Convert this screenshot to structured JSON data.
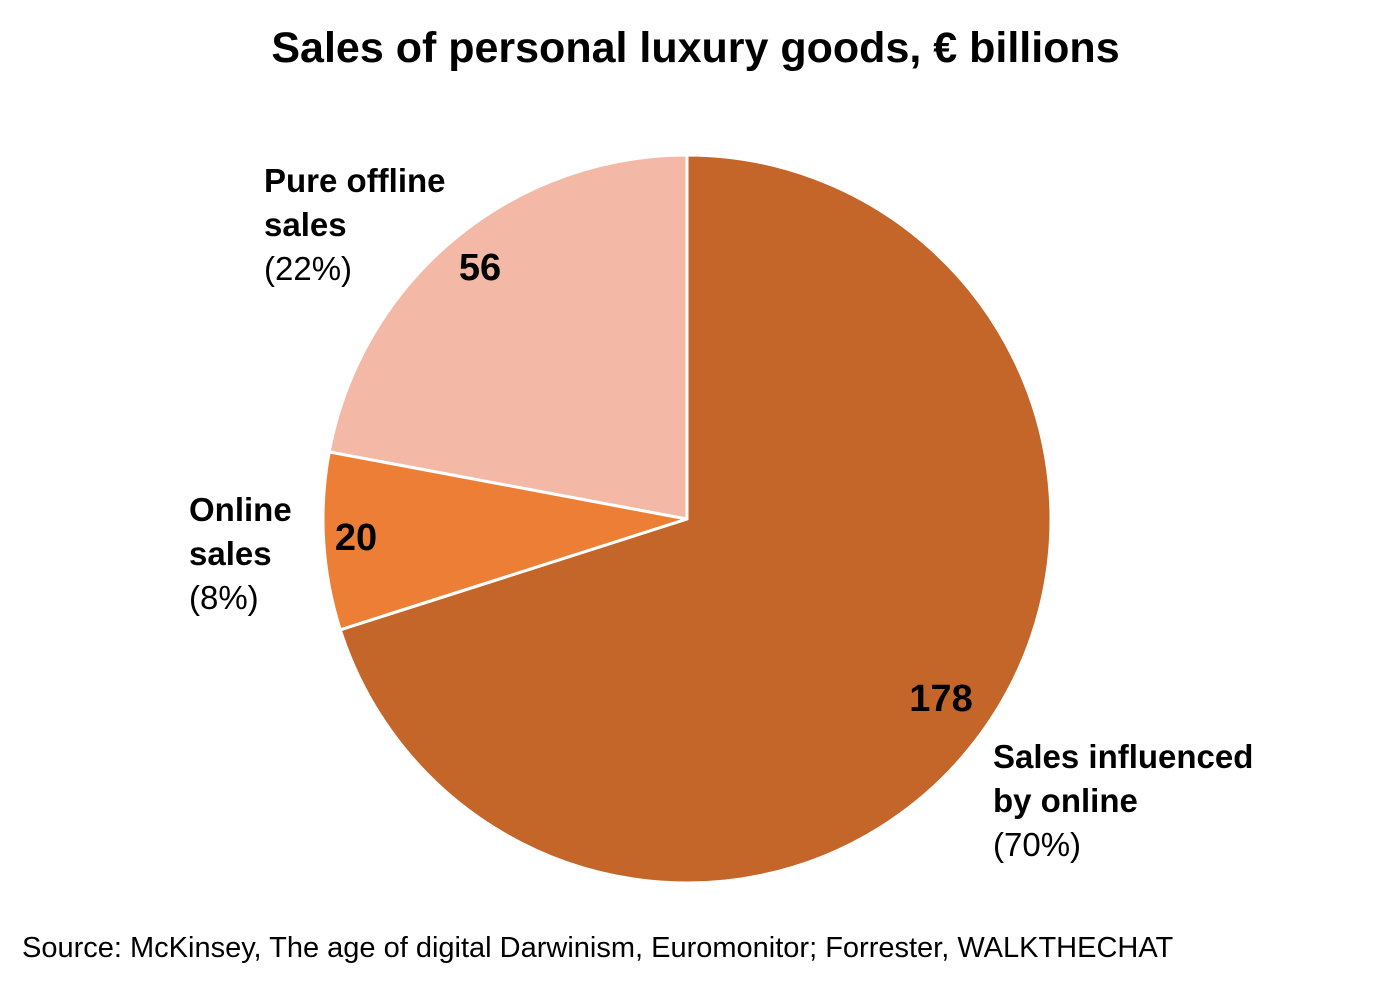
{
  "title": "Sales of personal luxury goods, € billions",
  "source": "Source: McKinsey, The age of digital Darwinism, Euromonitor; Forrester, WALKTHECHAT",
  "chart_data": {
    "type": "pie",
    "title": "Sales of personal luxury goods, € billions",
    "start": "12 o'clock",
    "direction": "clockwise",
    "slices": [
      {
        "label_line1": "Sales influenced",
        "label_line2": "by online",
        "value": 178,
        "value_label": "178",
        "percent_label": "(70%)",
        "color": "#C4652A"
      },
      {
        "label_line1": "Online",
        "label_line2": "sales",
        "value": 20,
        "value_label": "20",
        "percent_label": "(8%)",
        "color": "#EC7F35"
      },
      {
        "label_line1": "Pure offline",
        "label_line2": "sales",
        "value": 56,
        "value_label": "56",
        "percent_label": "(22%)",
        "color": "#F3B8A6"
      }
    ],
    "slice_border_color": "#FFFFFF"
  }
}
